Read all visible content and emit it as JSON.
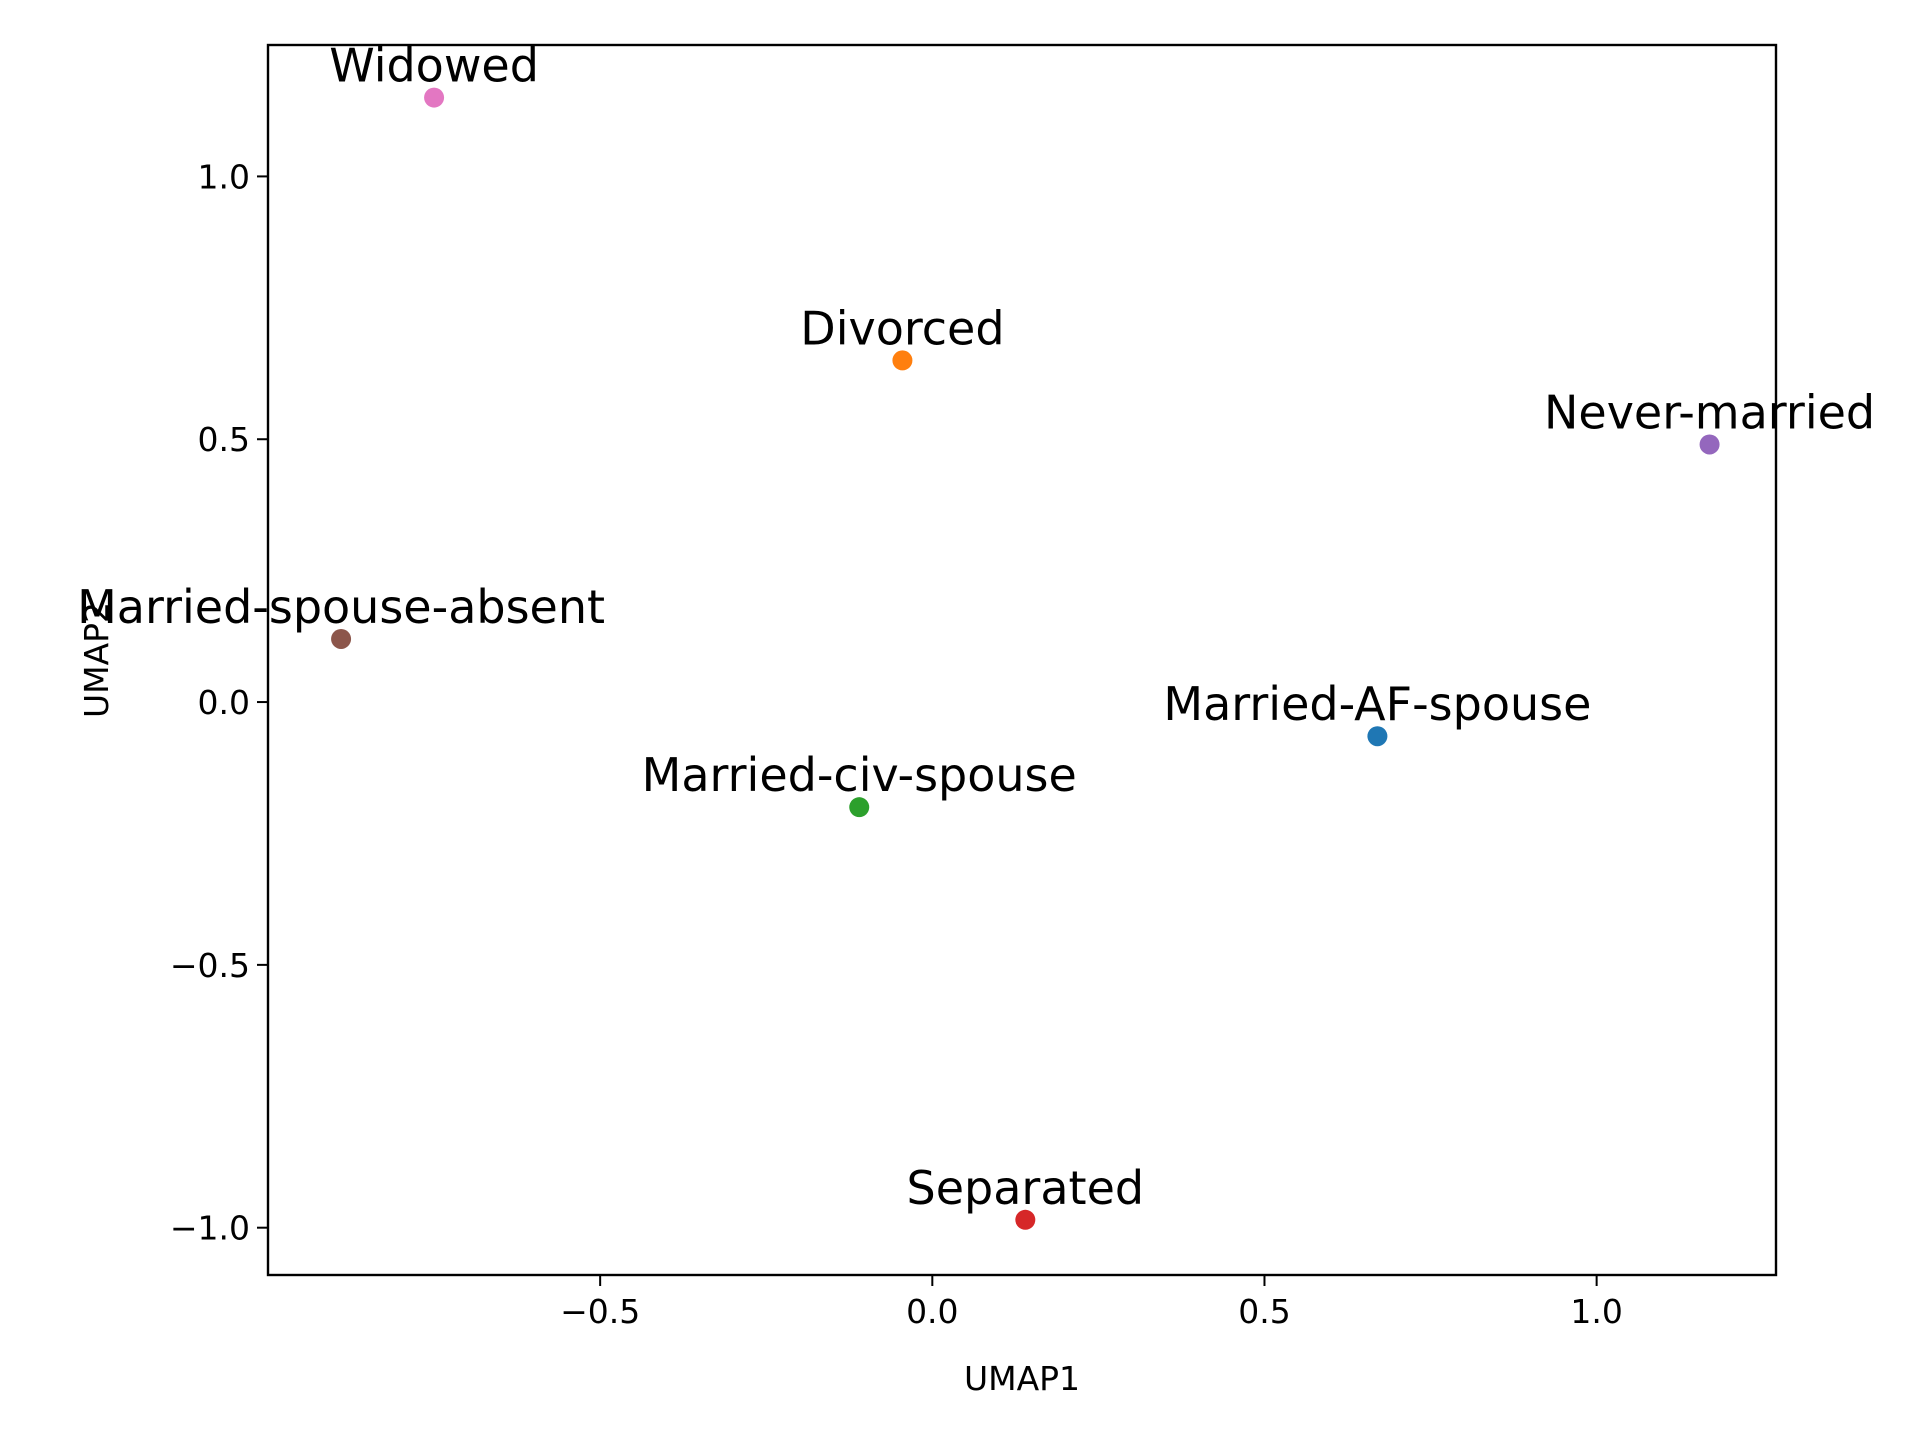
{
  "chart_data": {
    "type": "scatter",
    "title": "",
    "xlabel": "UMAP1",
    "ylabel": "UMAP2",
    "xlim": [
      -1.0,
      1.27
    ],
    "ylim": [
      -1.09,
      1.25
    ],
    "xticks": [
      -0.5,
      0.0,
      0.5,
      1.0
    ],
    "yticks": [
      -1.0,
      -0.5,
      0.0,
      0.5,
      1.0
    ],
    "xtick_labels": [
      "−0.5",
      "0.0",
      "0.5",
      "1.0"
    ],
    "ytick_labels": [
      "−1.0",
      "−0.5",
      "0.0",
      "0.5",
      "1.0"
    ],
    "grid": false,
    "points": [
      {
        "label": "Married-AF-spouse",
        "x": 0.67,
        "y": -0.065,
        "color": "#1f77b4"
      },
      {
        "label": "Divorced",
        "x": -0.045,
        "y": 0.65,
        "color": "#ff7f0e"
      },
      {
        "label": "Married-civ-spouse",
        "x": -0.11,
        "y": -0.2,
        "color": "#2ca02c"
      },
      {
        "label": "Separated",
        "x": 0.14,
        "y": -0.985,
        "color": "#d62728"
      },
      {
        "label": "Never-married",
        "x": 1.17,
        "y": 0.49,
        "color": "#9467bd"
      },
      {
        "label": "Married-spouse-absent",
        "x": -0.89,
        "y": 0.12,
        "color": "#8c564b"
      },
      {
        "label": "Widowed",
        "x": -0.75,
        "y": 1.15,
        "color": "#e377c2"
      }
    ]
  }
}
